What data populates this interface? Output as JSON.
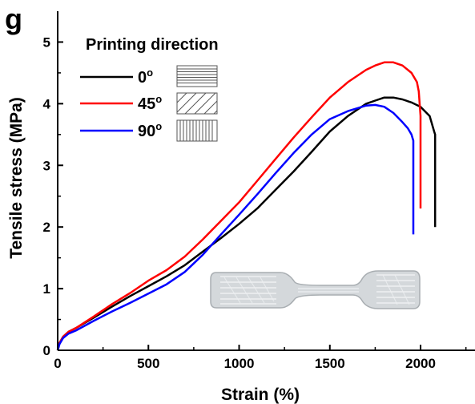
{
  "panel_label": "g",
  "chart_data": {
    "type": "line",
    "xlabel": "Strain (%)",
    "ylabel": "Tensile stress (MPa)",
    "xlim": [
      0,
      2300
    ],
    "ylim": [
      0,
      5.5
    ],
    "x_ticks": [
      0,
      500,
      1000,
      1500,
      2000
    ],
    "y_ticks": [
      0,
      1,
      2,
      3,
      4,
      5
    ],
    "grid": false,
    "legend": {
      "title": "Printing direction",
      "position": "top-left",
      "entries": [
        {
          "label": "0°",
          "sup_label": "0",
          "sup": "o",
          "color": "#000000",
          "pattern": "horizontal-lines"
        },
        {
          "label": "45°",
          "sup_label": "45",
          "sup": "o",
          "color": "#ff0000",
          "pattern": "diagonal-lines"
        },
        {
          "label": "90°",
          "sup_label": "90",
          "sup": "o",
          "color": "#0000ff",
          "pattern": "vertical-lines"
        }
      ]
    },
    "series": [
      {
        "name": "0°",
        "color": "#000000",
        "x": [
          0,
          10,
          30,
          60,
          100,
          200,
          300,
          400,
          500,
          600,
          700,
          800,
          900,
          1000,
          1100,
          1200,
          1300,
          1400,
          1500,
          1600,
          1700,
          1750,
          1800,
          1850,
          1900,
          1950,
          2000,
          2050,
          2075,
          2080,
          2080
        ],
        "y": [
          0,
          0.12,
          0.22,
          0.3,
          0.36,
          0.53,
          0.71,
          0.88,
          1.04,
          1.2,
          1.38,
          1.6,
          1.82,
          2.05,
          2.3,
          2.6,
          2.9,
          3.22,
          3.55,
          3.8,
          4.0,
          4.05,
          4.1,
          4.1,
          4.07,
          4.02,
          3.95,
          3.8,
          3.55,
          3.5,
          2.0
        ]
      },
      {
        "name": "45°",
        "color": "#ff0000",
        "x": [
          0,
          10,
          30,
          60,
          100,
          200,
          300,
          400,
          500,
          600,
          700,
          800,
          900,
          1000,
          1100,
          1200,
          1300,
          1400,
          1500,
          1600,
          1700,
          1750,
          1800,
          1850,
          1900,
          1950,
          1980,
          1990,
          1995,
          2000,
          2000
        ],
        "y": [
          0,
          0.12,
          0.22,
          0.3,
          0.36,
          0.55,
          0.75,
          0.93,
          1.13,
          1.3,
          1.52,
          1.8,
          2.1,
          2.4,
          2.75,
          3.1,
          3.45,
          3.78,
          4.1,
          4.35,
          4.55,
          4.62,
          4.67,
          4.67,
          4.62,
          4.5,
          4.35,
          4.2,
          4.0,
          3.8,
          2.3
        ]
      },
      {
        "name": "90°",
        "color": "#0000ff",
        "x": [
          0,
          10,
          30,
          60,
          100,
          200,
          300,
          400,
          500,
          600,
          700,
          800,
          900,
          1000,
          1100,
          1200,
          1300,
          1400,
          1500,
          1600,
          1700,
          1750,
          1800,
          1850,
          1900,
          1930,
          1950,
          1960,
          1960
        ],
        "y": [
          0,
          0.1,
          0.2,
          0.27,
          0.32,
          0.48,
          0.63,
          0.77,
          0.92,
          1.07,
          1.27,
          1.55,
          1.88,
          2.2,
          2.53,
          2.87,
          3.2,
          3.5,
          3.75,
          3.88,
          3.97,
          3.98,
          3.95,
          3.85,
          3.7,
          3.6,
          3.5,
          3.4,
          1.88
        ]
      }
    ]
  }
}
